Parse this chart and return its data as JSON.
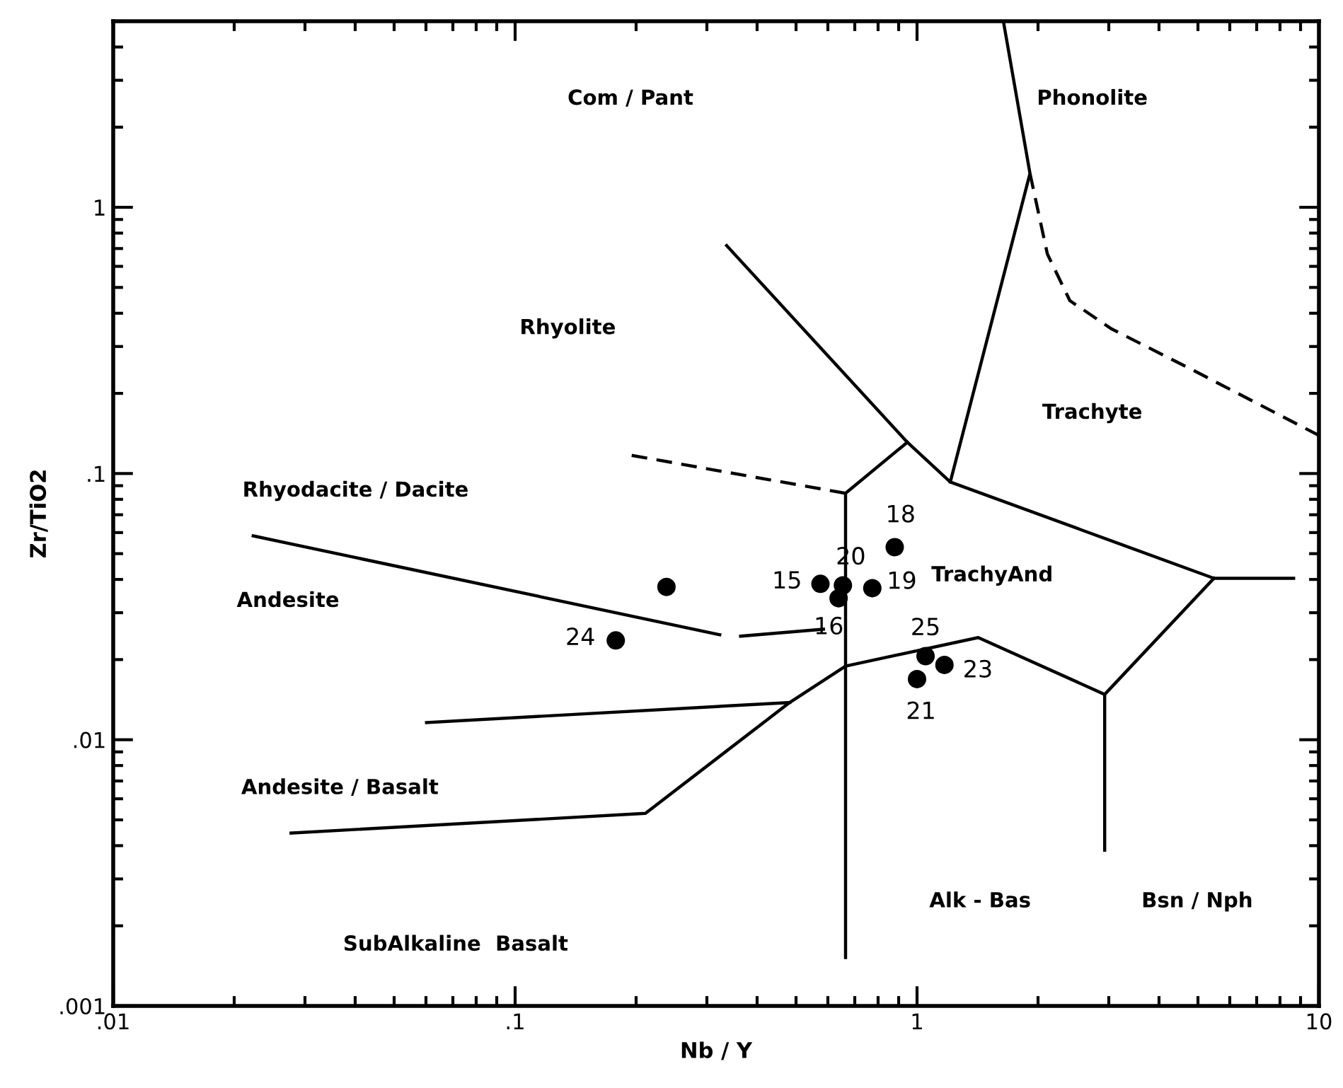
{
  "chart_data": {
    "type": "scatter",
    "xlabel": "Nb / Y",
    "ylabel": "Zr/TiO2",
    "log": "xy",
    "xlim": [
      0.01,
      10
    ],
    "ylim": [
      0.001,
      5
    ],
    "xticks": [
      {
        "value": 0.01,
        "label": ".01"
      },
      {
        "value": 0.1,
        "label": ".1"
      },
      1,
      10
    ],
    "yticks": [
      {
        "value": 0.001,
        "label": ".001"
      },
      {
        "value": 0.01,
        "label": ".01"
      },
      {
        "value": 0.1,
        "label": ".1"
      },
      1
    ],
    "series": [
      {
        "color": "#000000",
        "marker": "circle",
        "x": [
          0.238,
          0.178,
          0.575,
          0.654,
          0.638,
          0.774,
          0.88,
          1.05,
          1.17,
          1.0
        ],
        "values": [
          0.0375,
          0.0236,
          0.0385,
          0.038,
          0.034,
          0.0371,
          0.0529,
          0.0206,
          0.0191,
          0.0169
        ]
      },
      {
        "type": "line",
        "color": "#000000",
        "line_style": "solid",
        "x": [
          0.336,
          0.946,
          1.21,
          5.48,
          8.65
        ],
        "values": [
          0.718,
          0.131,
          0.0929,
          0.0404,
          0.0404
        ]
      },
      {
        "type": "line",
        "color": "#000000",
        "line_style": "solid",
        "x": [
          5.48,
          2.93,
          2.93
        ],
        "values": [
          0.0404,
          0.0148,
          0.00385
        ]
      },
      {
        "type": "line",
        "color": "#000000",
        "line_style": "solid",
        "x": [
          2.93,
          1.42,
          0.664,
          0.482,
          0.211,
          0.0277
        ],
        "values": [
          0.0148,
          0.0242,
          0.0189,
          0.0138,
          0.00529,
          0.00446
        ]
      },
      {
        "type": "line",
        "color": "#000000",
        "line_style": "solid",
        "x": [
          0.0602,
          0.482
        ],
        "values": [
          0.0116,
          0.0138
        ]
      },
      {
        "type": "line",
        "color": "#000000",
        "line_style": "solid",
        "x": [
          0.946,
          0.664,
          0.664
        ],
        "values": [
          0.131,
          0.0843,
          0.00152
        ]
      },
      {
        "type": "line",
        "color": "#000000",
        "line_style": "dashed",
        "x": [
          0.195,
          0.664
        ],
        "values": [
          0.117,
          0.0843
        ]
      },
      {
        "type": "line",
        "color": "#000000",
        "line_style": "solid",
        "x": [
          0.0223,
          0.323
        ],
        "values": [
          0.0583,
          0.0248
        ]
      },
      {
        "type": "line",
        "color": "#000000",
        "line_style": "solid",
        "x": [
          0.364,
          0.585
        ],
        "values": [
          0.0245,
          0.026
        ]
      },
      {
        "type": "line",
        "color": "#000000",
        "line_style": "solid",
        "x": [
          1.21,
          1.91,
          1.64
        ],
        "values": [
          0.0929,
          1.34,
          5
        ]
      },
      {
        "type": "line",
        "color": "#000000",
        "line_style": "dashed",
        "x": [
          1.91,
          2.11,
          2.4,
          3.05,
          4.7,
          10
        ],
        "values": [
          1.34,
          0.668,
          0.446,
          0.349,
          0.251,
          0.139
        ]
      }
    ],
    "annotations": [
      "Com / Pant",
      "Phonolite",
      "Rhyolite",
      "Trachyte",
      "Rhyodacite / Dacite",
      "Andesite",
      "TrachyAnd",
      "Andesite / Basalt",
      "Alk - Bas",
      "Bsn / Nph",
      "SubAlkaline  Basalt",
      {
        "text": "24",
        "x": 0.178,
        "y": 0.0236
      },
      {
        "text": "15",
        "x": 0.575,
        "y": 0.0385
      },
      {
        "text": "20",
        "x": 0.654,
        "y": 0.038
      },
      {
        "text": "16",
        "x": 0.638,
        "y": 0.034
      },
      {
        "text": "19",
        "x": 0.774,
        "y": 0.0371
      },
      {
        "text": "18",
        "x": 0.88,
        "y": 0.0529
      },
      {
        "text": "25",
        "x": 1.05,
        "y": 0.0206
      },
      {
        "text": "23",
        "x": 1.17,
        "y": 0.0191
      },
      {
        "text": "21",
        "x": 1.0,
        "y": 0.0169
      }
    ]
  }
}
